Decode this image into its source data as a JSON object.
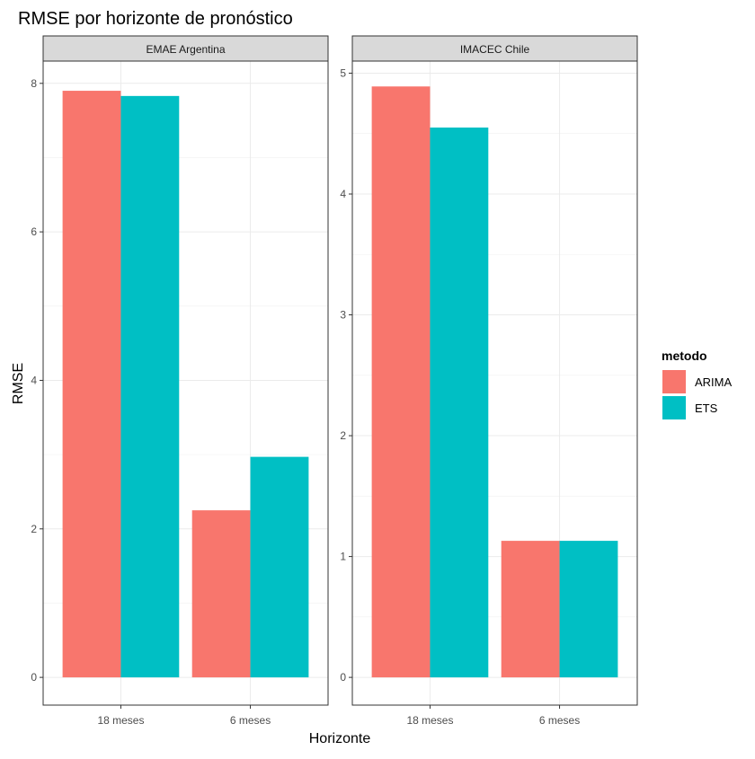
{
  "chart_data": {
    "type": "bar",
    "title": "RMSE por horizonte de pronóstico",
    "xlabel": "Horizonte",
    "ylabel": "RMSE",
    "legend": {
      "title": "metodo",
      "position": "right",
      "entries": [
        {
          "label": "ARIMA",
          "color": "#F8766D"
        },
        {
          "label": "ETS",
          "color": "#00BFC4"
        }
      ]
    },
    "grid": true,
    "categories": [
      "18 meses",
      "6 meses"
    ],
    "panels": [
      {
        "strip": "EMAE Argentina",
        "ylim": [
          0,
          8.3
        ],
        "yticks": [
          0,
          2,
          4,
          6,
          8
        ],
        "series": [
          {
            "name": "ARIMA",
            "values": [
              7.9,
              2.25
            ]
          },
          {
            "name": "ETS",
            "values": [
              7.83,
              2.97
            ]
          }
        ]
      },
      {
        "strip": "IMACEC Chile",
        "ylim": [
          0,
          5.1
        ],
        "yticks": [
          0,
          1,
          2,
          3,
          4,
          5
        ],
        "series": [
          {
            "name": "ARIMA",
            "values": [
              4.89,
              1.13
            ]
          },
          {
            "name": "ETS",
            "values": [
              4.55,
              1.13
            ]
          }
        ]
      }
    ]
  }
}
